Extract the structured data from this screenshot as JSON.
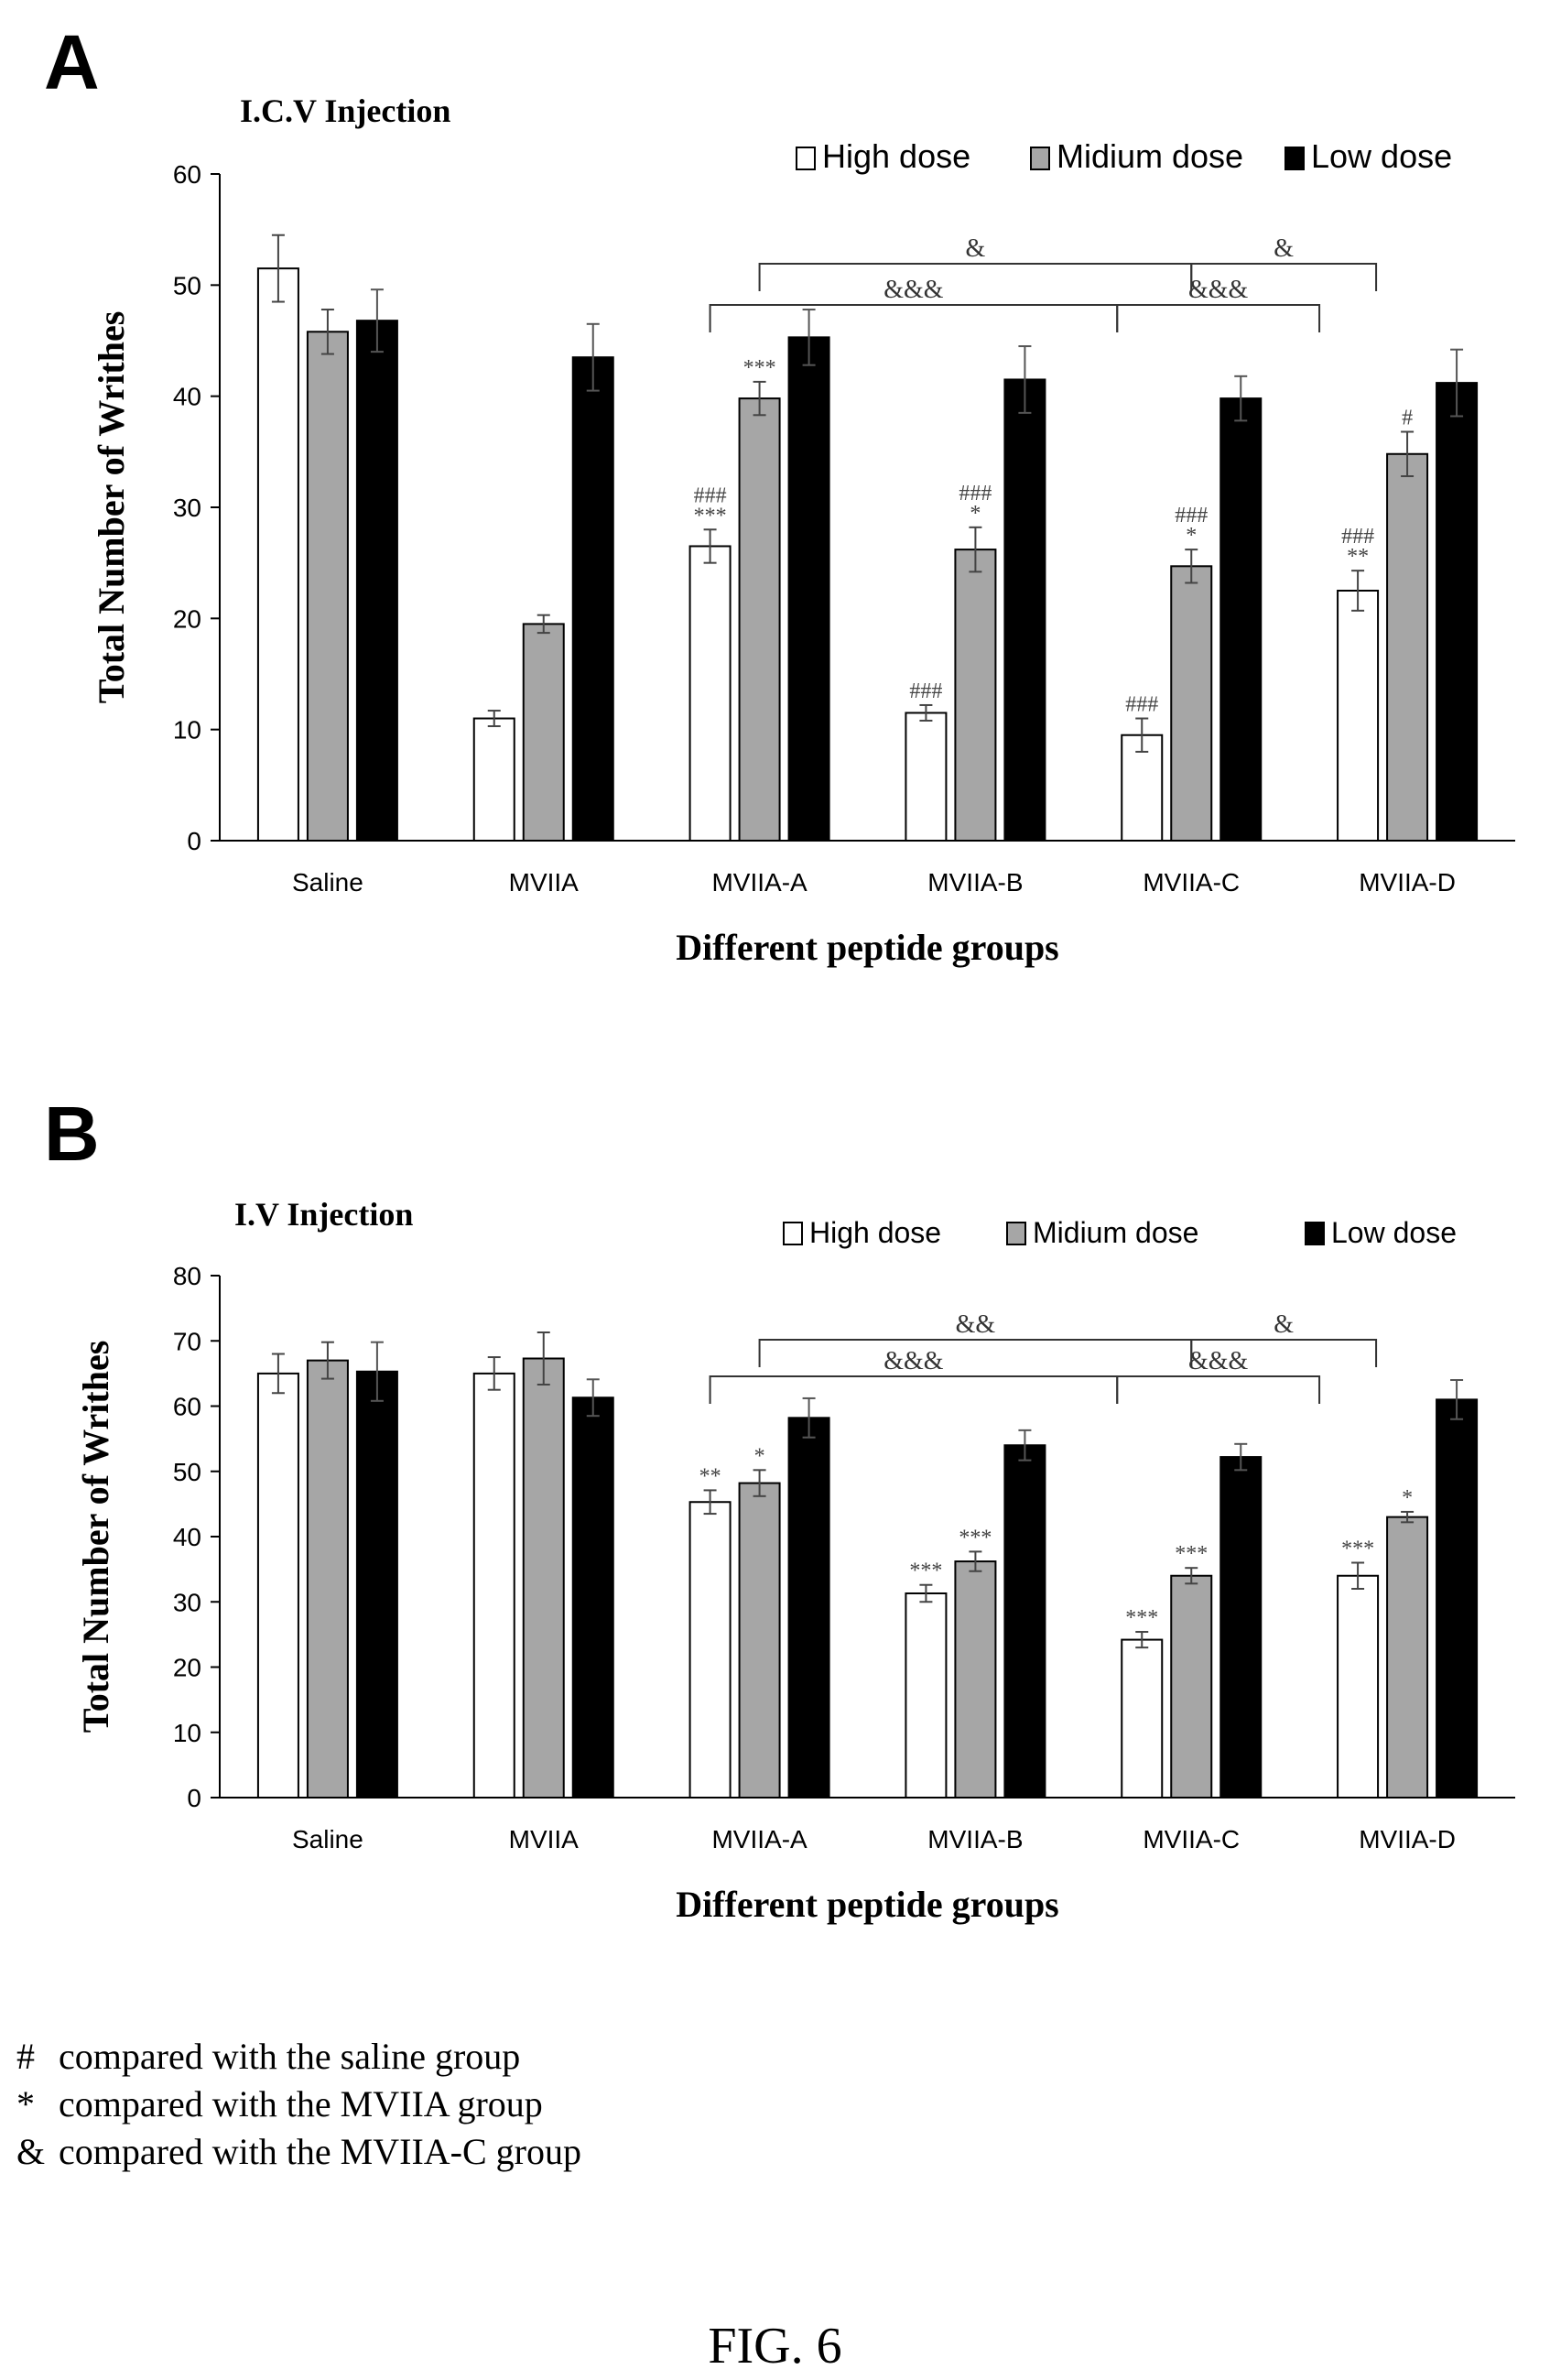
{
  "figure_label": "FIG. 6",
  "footnotes": [
    {
      "symbol": "#",
      "text": "compared with the saline group"
    },
    {
      "symbol": "*",
      "text": "compared with the MVIIA group"
    },
    {
      "symbol": "&",
      "text": "compared with the MVIIA-C group"
    }
  ],
  "chart_data": [
    {
      "type": "bar",
      "panel": "A",
      "title": "I.C.V Injection",
      "xlabel": "Different peptide groups",
      "ylabel": "Total Number of Writhes",
      "ylim": [
        0,
        60
      ],
      "yticks": [
        0,
        10,
        20,
        30,
        40,
        50,
        60
      ],
      "categories": [
        "Saline",
        "MVIIA",
        "MVIIA-A",
        "MVIIA-B",
        "MVIIA-C",
        "MVIIA-D"
      ],
      "legend_position": "top-right",
      "series": [
        {
          "name": "High dose",
          "color": "#ffffff",
          "values": [
            51.5,
            11,
            26.5,
            11.5,
            9.5,
            22.5
          ],
          "errors": [
            3,
            0.7,
            1.5,
            0.7,
            1.5,
            1.8
          ],
          "labels": [
            "",
            "",
            "###\n***",
            "###",
            "###",
            "###\n**"
          ]
        },
        {
          "name": "Midium dose",
          "color": "#a6a6a6",
          "values": [
            45.8,
            19.5,
            39.8,
            26.2,
            24.7,
            34.8
          ],
          "errors": [
            2,
            0.8,
            1.5,
            2,
            1.5,
            2
          ],
          "labels": [
            "",
            "",
            "***",
            "###\n*",
            "###\n*",
            "#"
          ]
        },
        {
          "name": "Low dose",
          "color": "#000000",
          "values": [
            46.8,
            43.5,
            45.3,
            41.5,
            39.8,
            41.2
          ],
          "errors": [
            2.8,
            3,
            2.5,
            3,
            2,
            3
          ],
          "labels": [
            "",
            "",
            "",
            "",
            "",
            ""
          ]
        }
      ],
      "brackets": [
        {
          "from_category": "MVIIA-A",
          "to_category": "MVIIA-C",
          "label": "&",
          "level": "upper"
        },
        {
          "from_category": "MVIIA-C",
          "to_category": "MVIIA-D",
          "label": "&",
          "level": "upper"
        },
        {
          "from_category": "MVIIA-A",
          "to_category": "MVIIA-C",
          "label": "&&&",
          "level": "lower"
        },
        {
          "from_category": "MVIIA-C",
          "to_category": "MVIIA-D",
          "label": "&&&",
          "level": "lower"
        }
      ]
    },
    {
      "type": "bar",
      "panel": "B",
      "title": "I.V Injection",
      "xlabel": "Different peptide groups",
      "ylabel": "Total Number of Writhes",
      "ylim": [
        0,
        80
      ],
      "yticks": [
        0,
        10,
        20,
        30,
        40,
        50,
        60,
        70,
        80
      ],
      "categories": [
        "Saline",
        "MVIIA",
        "MVIIA-A",
        "MVIIA-B",
        "MVIIA-C",
        "MVIIA-D"
      ],
      "legend_position": "top-right",
      "series": [
        {
          "name": "High dose",
          "color": "#ffffff",
          "values": [
            65,
            65,
            45.3,
            31.3,
            24.2,
            34
          ],
          "errors": [
            3,
            2.5,
            1.8,
            1.3,
            1.2,
            2
          ],
          "labels": [
            "",
            "",
            "**",
            "***",
            "***",
            "***"
          ]
        },
        {
          "name": "Midium dose",
          "color": "#a6a6a6",
          "values": [
            67,
            67.3,
            48.2,
            36.2,
            34,
            43
          ],
          "errors": [
            2.8,
            4,
            2,
            1.5,
            1.2,
            0.8
          ],
          "labels": [
            "",
            "",
            "*",
            "***",
            "***",
            "*"
          ]
        },
        {
          "name": "Low dose",
          "color": "#000000",
          "values": [
            65.3,
            61.3,
            58.2,
            54,
            52.2,
            61
          ],
          "errors": [
            4.5,
            2.8,
            3,
            2.3,
            2,
            3
          ],
          "labels": [
            "",
            "",
            "",
            "",
            "",
            ""
          ]
        }
      ],
      "brackets": [
        {
          "from_category": "MVIIA-A",
          "to_category": "MVIIA-C",
          "label": "&&",
          "level": "upper"
        },
        {
          "from_category": "MVIIA-C",
          "to_category": "MVIIA-D",
          "label": "&",
          "level": "upper"
        },
        {
          "from_category": "MVIIA-A",
          "to_category": "MVIIA-C",
          "label": "&&&",
          "level": "lower"
        },
        {
          "from_category": "MVIIA-C",
          "to_category": "MVIIA-D",
          "label": "&&&",
          "level": "lower"
        }
      ]
    }
  ]
}
